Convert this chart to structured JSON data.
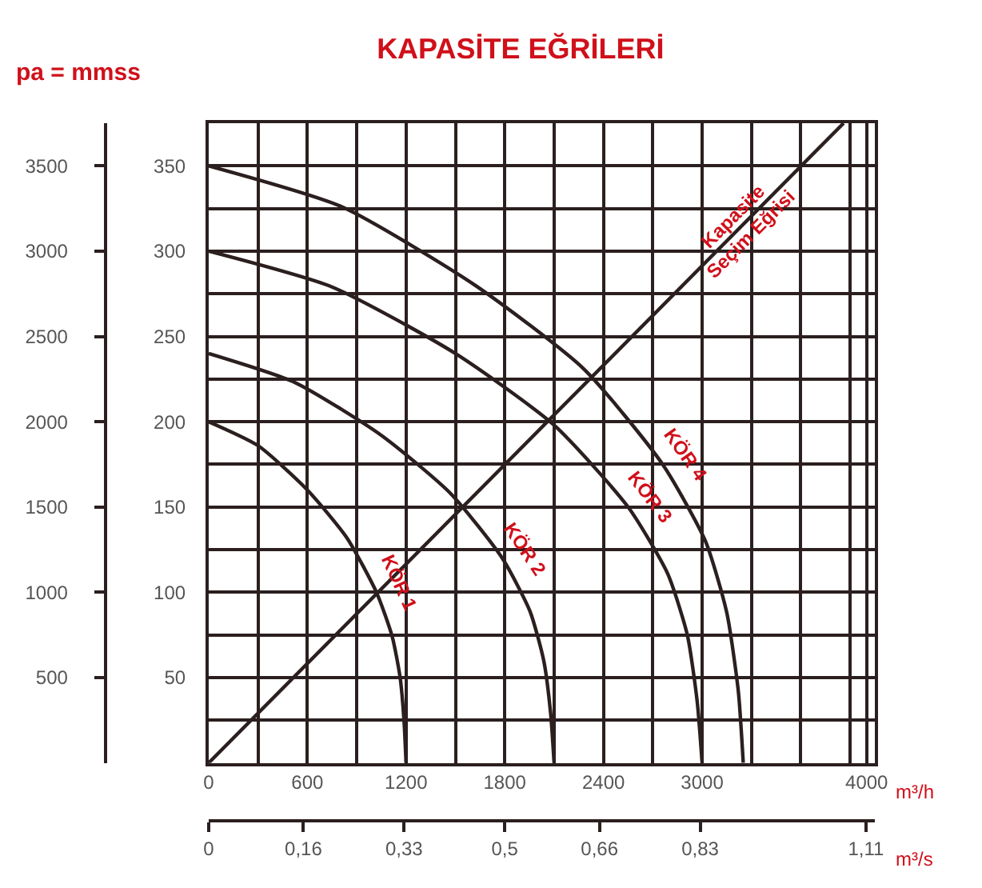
{
  "chart_data": {
    "type": "line",
    "title": "KAPASİTE EĞRİLERİ",
    "y2label": "pa = mmss",
    "xlabel": "m³/h",
    "x2label": "m³/s",
    "xlim": [
      0,
      4050
    ],
    "xticks": [
      0,
      600,
      1200,
      1800,
      2400,
      3000,
      4000
    ],
    "x2lim": [
      0,
      1.125
    ],
    "x2ticks": [
      {
        "value": 0,
        "label": "0"
      },
      {
        "value": 0.16,
        "label": "0,16"
      },
      {
        "value": 0.33,
        "label": "0,33"
      },
      {
        "value": 0.5,
        "label": "0,5"
      },
      {
        "value": 0.66,
        "label": "0,66"
      },
      {
        "value": 0.83,
        "label": "0,83"
      },
      {
        "value": 1.11,
        "label": "1,11"
      }
    ],
    "ylim": [
      0,
      375
    ],
    "yticks": [
      50,
      100,
      150,
      200,
      250,
      300,
      350
    ],
    "y2lim": [
      0,
      3750
    ],
    "y2ticks": [
      500,
      1000,
      1500,
      2000,
      2500,
      3000,
      3500
    ],
    "grid": true,
    "legend": false,
    "series": [
      {
        "name": "KÖR 1",
        "color": "#2b1f1f",
        "x": [
          0,
          300,
          600,
          840,
          1020,
          1116,
          1164,
          1188,
          1200
        ],
        "values": [
          200,
          186,
          160,
          132,
          100,
          74,
          50,
          24,
          0
        ]
      },
      {
        "name": "KÖR 2",
        "color": "#2b1f1f",
        "x": [
          0,
          525,
          1050,
          1470,
          1785,
          1953,
          2037,
          2079,
          2100
        ],
        "values": [
          240,
          223,
          192,
          158,
          120,
          89,
          60,
          29,
          0
        ]
      },
      {
        "name": "KÖR 3",
        "color": "#2b1f1f",
        "x": [
          0,
          750,
          1500,
          2100,
          2550,
          2790,
          2910,
          2970,
          3000
        ],
        "values": [
          300,
          279,
          240,
          198,
          150,
          111,
          75,
          36,
          0
        ]
      },
      {
        "name": "KÖR 4",
        "color": "#2b1f1f",
        "x": [
          0,
          810,
          1620,
          2280,
          2760,
          3020,
          3150,
          3220,
          3250
        ],
        "values": [
          350,
          326,
          280,
          231,
          175,
          130,
          88,
          42,
          0
        ]
      },
      {
        "name": "Kapasite Seçim Eğrisi",
        "color": "#2b1f1f",
        "x": [
          0,
          3860
        ],
        "values": [
          0,
          375
        ]
      }
    ]
  }
}
